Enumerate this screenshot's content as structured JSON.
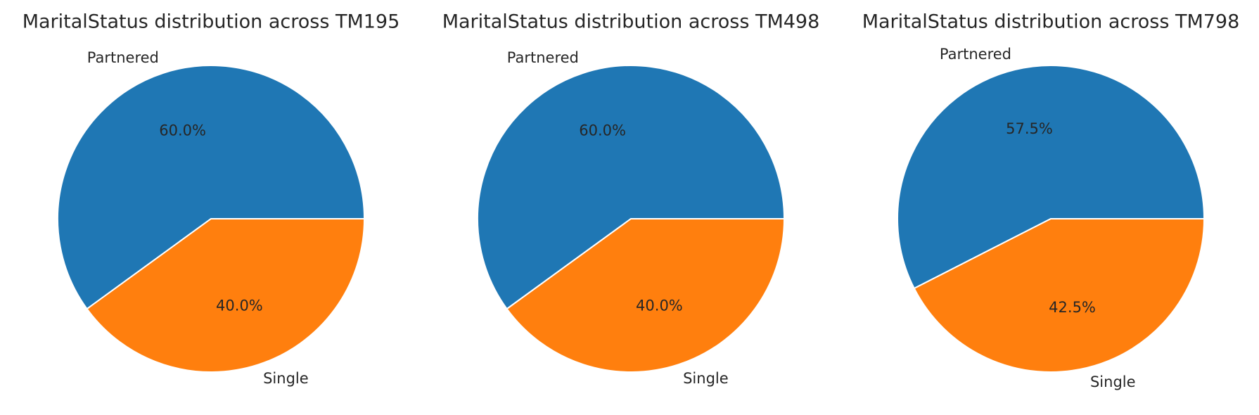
{
  "chart_data": [
    {
      "type": "pie",
      "title": "MaritalStatus distribution across TM195",
      "categories": [
        "Partnered",
        "Single"
      ],
      "values": [
        60.0,
        40.0
      ],
      "percent_labels": [
        "60.0%",
        "40.0%"
      ],
      "colors": [
        "#1f77b4",
        "#ff7f0e"
      ]
    },
    {
      "type": "pie",
      "title": "MaritalStatus distribution across TM498",
      "categories": [
        "Partnered",
        "Single"
      ],
      "values": [
        60.0,
        40.0
      ],
      "percent_labels": [
        "60.0%",
        "40.0%"
      ],
      "colors": [
        "#1f77b4",
        "#ff7f0e"
      ]
    },
    {
      "type": "pie",
      "title": "MaritalStatus distribution across TM798",
      "categories": [
        "Partnered",
        "Single"
      ],
      "values": [
        57.5,
        42.5
      ],
      "percent_labels": [
        "57.5%",
        "42.5%"
      ],
      "colors": [
        "#1f77b4",
        "#ff7f0e"
      ]
    }
  ]
}
